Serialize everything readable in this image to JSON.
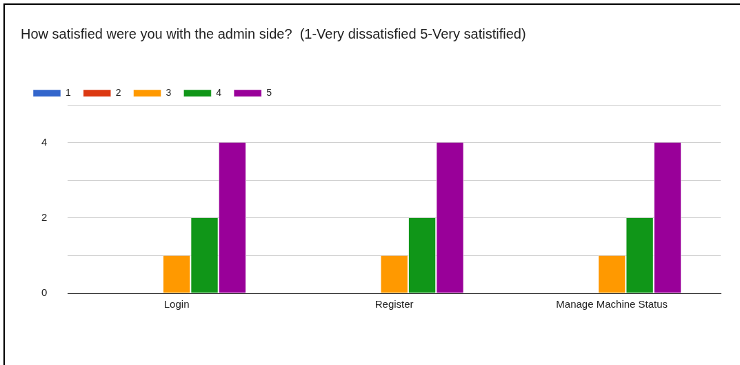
{
  "chart_data": {
    "type": "bar",
    "title": "How satisfied were you with the admin side?  (1-Very dissatisfied 5-Very satistified)",
    "categories": [
      "Login",
      "Register",
      "Manage Machine Status"
    ],
    "series": [
      {
        "name": "1",
        "color": "#3366cc",
        "values": [
          0,
          0,
          0
        ]
      },
      {
        "name": "2",
        "color": "#dc3912",
        "values": [
          0,
          0,
          0
        ]
      },
      {
        "name": "3",
        "color": "#ff9900",
        "values": [
          1,
          1,
          1
        ]
      },
      {
        "name": "4",
        "color": "#109618",
        "values": [
          2,
          2,
          2
        ]
      },
      {
        "name": "5",
        "color": "#990099",
        "values": [
          4,
          4,
          4
        ]
      }
    ],
    "ylim": [
      0,
      5
    ],
    "yticks": [
      0,
      {
        "value": 1,
        "label": null
      },
      2,
      {
        "value": 3,
        "label": null
      },
      4,
      {
        "value": 5,
        "label": null
      }
    ],
    "grid": "y",
    "legend": "top left"
  }
}
